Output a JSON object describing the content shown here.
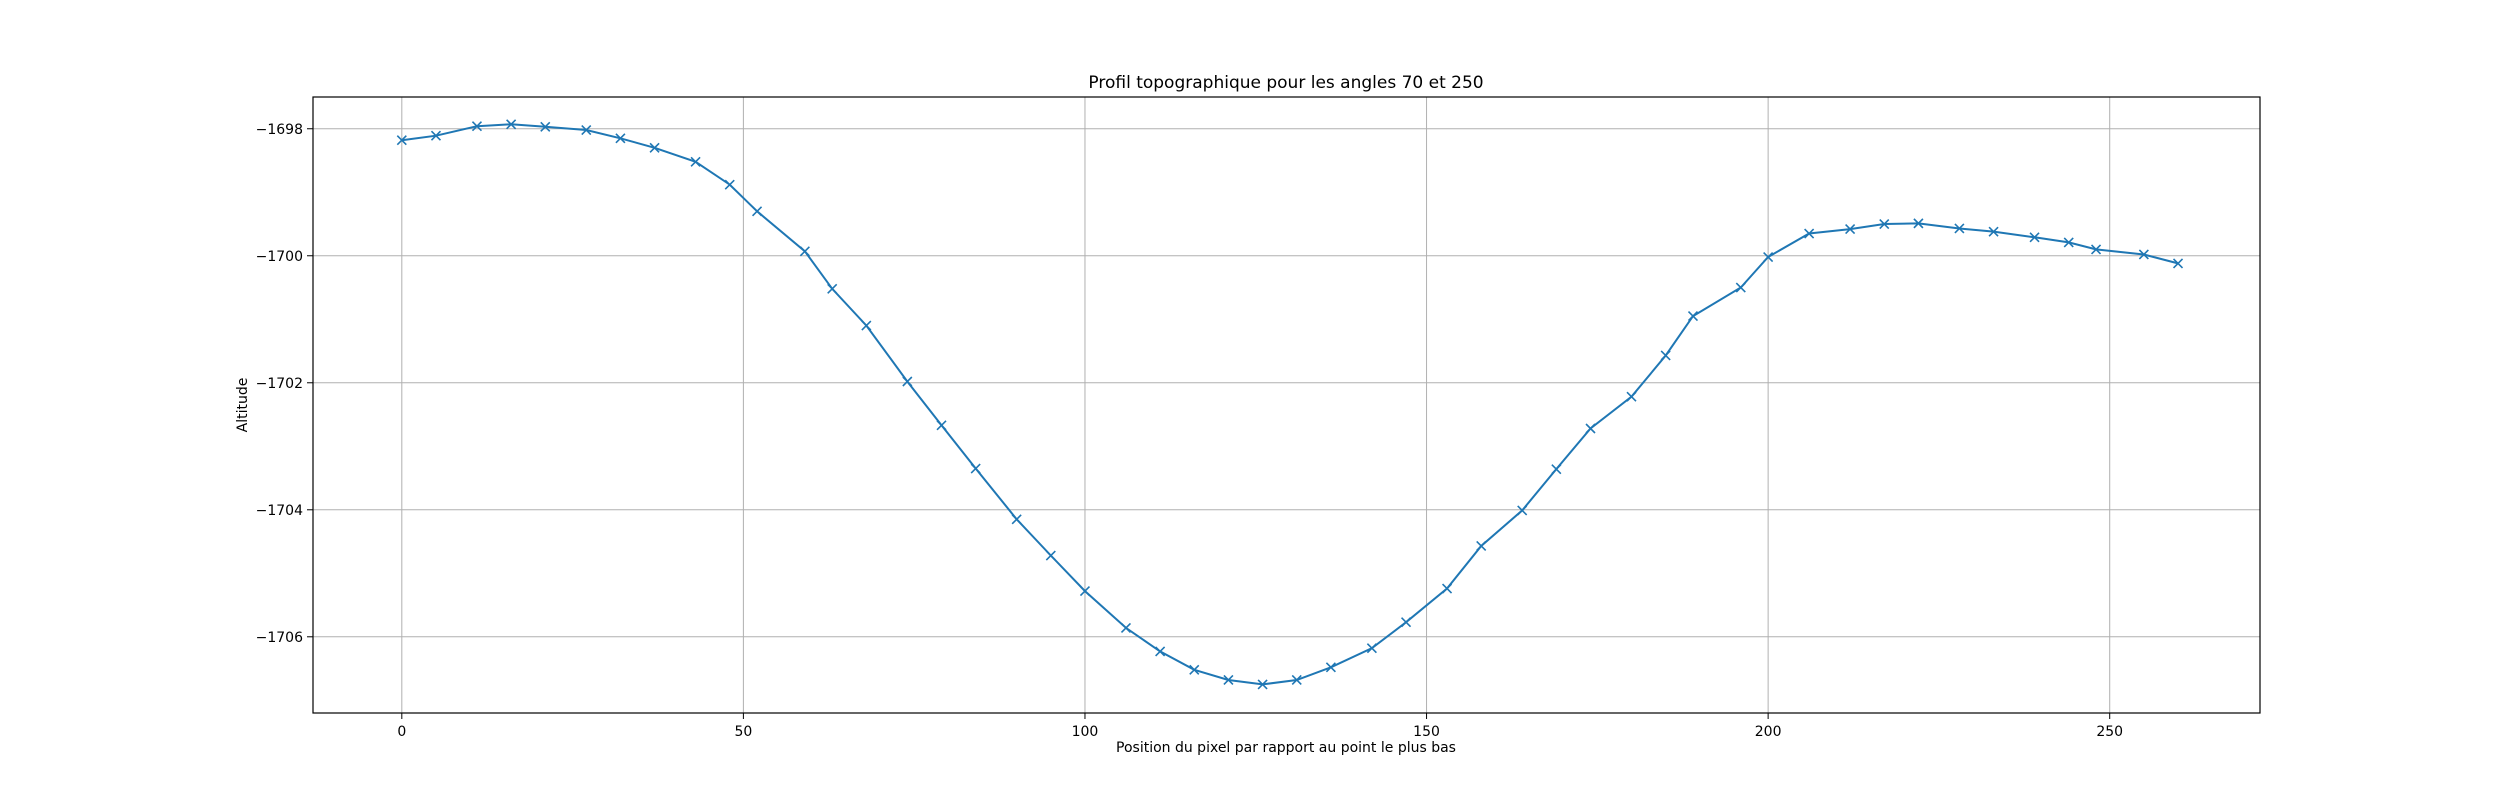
{
  "chart_data": {
    "type": "line",
    "title": "Profil topographique pour les angles 70 et 250",
    "xlabel": "Position du pixel par rapport au point le plus bas",
    "ylabel": "Altitude",
    "xlim": [
      -13,
      272
    ],
    "ylim": [
      -1707.2,
      -1697.5
    ],
    "xticks": [
      0,
      50,
      100,
      150,
      200,
      250
    ],
    "yticks": [
      -1698,
      -1700,
      -1702,
      -1704,
      -1706
    ],
    "grid": true,
    "marker": "x",
    "line_color": "#1f77b4",
    "series": [
      {
        "x": [
          0,
          5,
          11,
          16,
          21,
          27,
          32,
          37,
          43,
          48,
          52,
          59,
          63,
          68,
          74,
          79,
          84,
          90,
          95,
          100,
          106,
          111,
          116,
          121,
          126,
          131,
          136,
          142,
          147,
          153,
          158,
          164,
          169,
          174,
          180,
          185,
          189,
          196,
          200,
          206,
          212,
          217,
          222,
          228,
          233,
          239,
          244,
          248,
          255,
          260
        ],
        "y": [
          -1698.18,
          -1698.11,
          -1697.96,
          -1697.93,
          -1697.97,
          -1698.02,
          -1698.15,
          -1698.3,
          -1698.52,
          -1698.88,
          -1699.3,
          -1699.93,
          -1700.52,
          -1701.1,
          -1701.98,
          -1702.67,
          -1703.35,
          -1704.15,
          -1704.72,
          -1705.28,
          -1705.86,
          -1706.23,
          -1706.52,
          -1706.68,
          -1706.75,
          -1706.68,
          -1706.48,
          -1706.18,
          -1705.77,
          -1705.24,
          -1704.57,
          -1704.01,
          -1703.36,
          -1702.72,
          -1702.22,
          -1701.57,
          -1700.95,
          -1700.5,
          -1700.02,
          -1699.65,
          -1699.58,
          -1699.5,
          -1699.49,
          -1699.57,
          -1699.62,
          -1699.71,
          -1699.79,
          -1699.9,
          -1699.98,
          -1700.12
        ]
      }
    ]
  }
}
